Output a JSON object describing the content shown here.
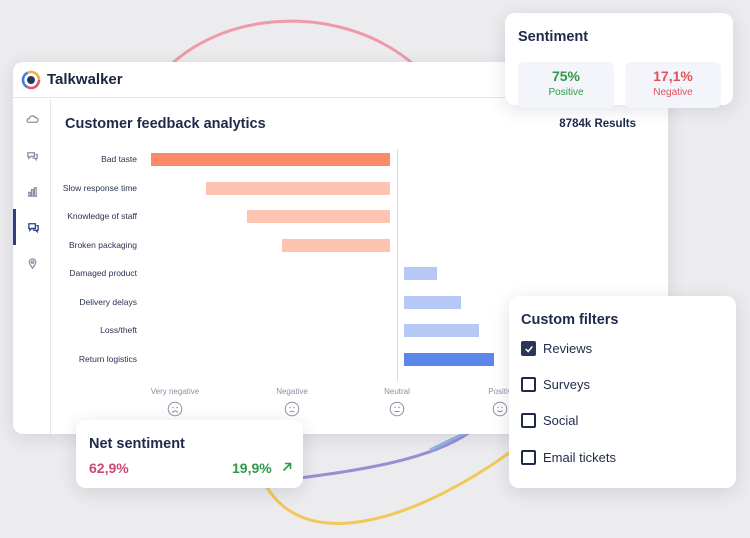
{
  "app": {
    "brand": "Talkwalker"
  },
  "main": {
    "title": "Customer feedback analytics",
    "results": "8784k Results"
  },
  "categories": [
    {
      "label": "Bad taste",
      "sentiment": "negative",
      "value": 1.0
    },
    {
      "label": "Slow response time",
      "sentiment": "negative",
      "value": 0.77
    },
    {
      "label": "Knowledge of staff",
      "sentiment": "negative",
      "value": 0.6
    },
    {
      "label": "Broken packaging",
      "sentiment": "negative",
      "value": 0.45
    },
    {
      "label": "Damaged product",
      "sentiment": "positive",
      "value": 0.22
    },
    {
      "label": "Delivery delays",
      "sentiment": "positive",
      "value": 0.38
    },
    {
      "label": "Loss/theft",
      "sentiment": "positive",
      "value": 0.5
    },
    {
      "label": "Return logistics",
      "sentiment": "positive",
      "value": 0.6
    }
  ],
  "axis": {
    "very_negative": "Very negative",
    "negative": "Negative",
    "neutral": "Neutral",
    "positive": "Positiv"
  },
  "sentiment_card": {
    "title": "Sentiment",
    "positive_value": "75%",
    "positive_label": "Positive",
    "negative_value": "17,1%",
    "negative_label": "Negative"
  },
  "net_sentiment": {
    "title": "Net sentiment",
    "negative_value": "62,9%",
    "positive_value": "19,9%"
  },
  "filters": {
    "title": "Custom filters",
    "items": [
      {
        "label": "Reviews",
        "checked": true
      },
      {
        "label": "Surveys",
        "checked": false
      },
      {
        "label": "Social",
        "checked": false
      },
      {
        "label": "Email tickets",
        "checked": false
      }
    ]
  },
  "colors": {
    "neg_strong": "#fb8a66",
    "neg_light": "#fdc4b1",
    "pos_light": "#b6c8f5",
    "pos_strong": "#5c86ec"
  }
}
